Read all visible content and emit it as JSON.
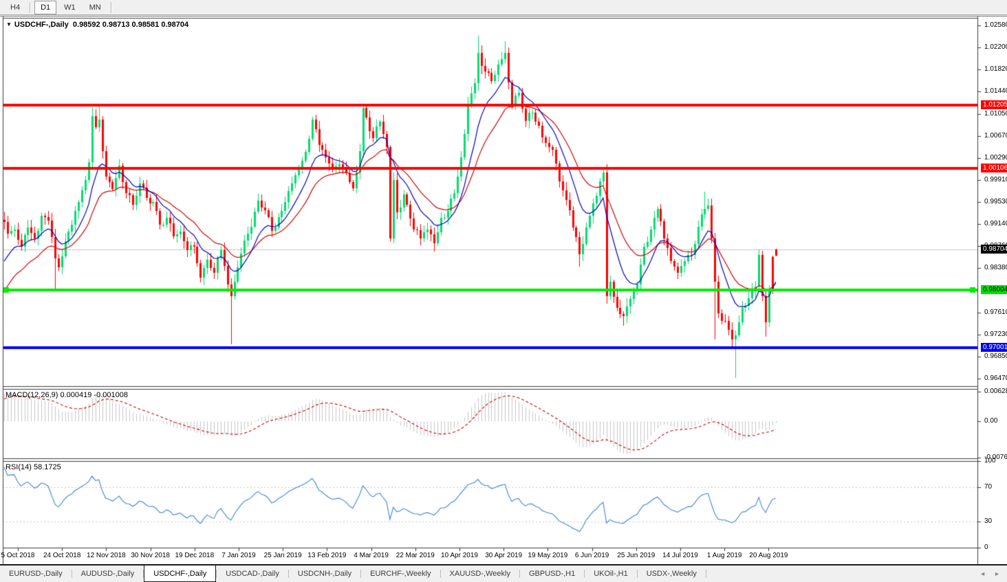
{
  "toolbar": {
    "buttons": [
      {
        "label": "H4",
        "active": false,
        "sep_after": true
      },
      {
        "label": "D1",
        "active": true,
        "sep_after": false
      },
      {
        "label": "W1",
        "active": false,
        "sep_after": false
      },
      {
        "label": "MN",
        "active": false,
        "sep_after": true
      }
    ]
  },
  "chart_data": {
    "type": "candlestick",
    "dropdown_glyph": "▼",
    "symbol_title": "USDCHF-,Daily",
    "ohlc_text": "0.98592 0.98713 0.98581 0.98704",
    "last_candle": {
      "o": 0.98592,
      "h": 0.98713,
      "l": 0.98581,
      "c": 0.98704
    },
    "first_open": 0.9922,
    "candles_n": 229,
    "colors": {
      "up": "#00DC6E",
      "down": "#FF0000",
      "ma_fast": "#0000C8",
      "ma_slow": "#D40000",
      "hist": "#C6C6C6",
      "signal": "#CC0000",
      "rsi": "#3C82DC",
      "grid_dash": "#C8C8C8",
      "current_line": "#C8C8C8"
    },
    "price_ticks": [
      {
        "v": 1.0258,
        "t": "1.02580"
      },
      {
        "v": 1.022,
        "t": "1.02200"
      },
      {
        "v": 1.0182,
        "t": "1.01820"
      },
      {
        "v": 1.0144,
        "t": "1.01440"
      },
      {
        "v": 1.0105,
        "t": "1.01050"
      },
      {
        "v": 1.0067,
        "t": "1.00670"
      },
      {
        "v": 1.0029,
        "t": "1.00290"
      },
      {
        "v": 0.9991,
        "t": "0.99910"
      },
      {
        "v": 0.9953,
        "t": "0.99530"
      },
      {
        "v": 0.9914,
        "t": "0.99140"
      },
      {
        "v": 0.9876,
        "t": "0.98760"
      },
      {
        "v": 0.9838,
        "t": "0.98380"
      },
      {
        "v": 0.9761,
        "t": "0.97610"
      },
      {
        "v": 0.9723,
        "t": "0.97230"
      },
      {
        "v": 0.9685,
        "t": "0.96850"
      },
      {
        "v": 0.9647,
        "t": "0.96470"
      }
    ],
    "levels": [
      {
        "value": 1.01205,
        "color": "#FF0000",
        "width": 4,
        "label": "1.01205",
        "label_bg": "#FF0000",
        "label_fg": "#FFFFFF",
        "markers": false
      },
      {
        "value": 1.00106,
        "color": "#FF0000",
        "width": 4,
        "label": "1.00106",
        "label_bg": "#FF0000",
        "label_fg": "#FFFFFF",
        "markers": false
      },
      {
        "value": 0.98004,
        "color": "#00EE00",
        "width": 4,
        "label": "0.98004",
        "label_bg": "#00E000",
        "label_fg": "#000000",
        "markers": true
      },
      {
        "value": 0.97001,
        "color": "#0000FF",
        "width": 4,
        "label": "0.97001",
        "label_bg": "#0000F0",
        "label_fg": "#FFFFFF",
        "markers": false
      }
    ],
    "current_price": {
      "value": 0.98704,
      "label": "0.98704",
      "label_bg": "#000000",
      "label_fg": "#FFFFFF"
    },
    "x_labels": [
      "5 Oct 2018",
      "24 Oct 2018",
      "12 Nov 2018",
      "30 Nov 2018",
      "19 Dec 2018",
      "7 Jan 2019",
      "25 Jan 2019",
      "13 Feb 2019",
      "4 Mar 2019",
      "22 Mar 2019",
      "10 Apr 2019",
      "30 Apr 2019",
      "19 May 2019",
      "6 Jun 2019",
      "25 Jun 2019",
      "14 Jul 2019",
      "1 Aug 2019",
      "20 Aug 2019"
    ],
    "warmup": [
      0.9635,
      0.9642,
      0.9655,
      0.9648,
      0.9668,
      0.9672,
      0.969,
      0.9685,
      0.9705,
      0.9718,
      0.9712,
      0.973,
      0.9745,
      0.9742,
      0.976,
      0.9775,
      0.977,
      0.979,
      0.9805,
      0.98,
      0.9822,
      0.9838,
      0.9845,
      0.9862,
      0.9878,
      0.9895
    ],
    "anchors": [
      [
        0,
        0.9918
      ],
      [
        1,
        0.9898
      ],
      [
        3,
        0.9905
      ],
      [
        5,
        0.9875
      ],
      [
        7,
        0.9908
      ],
      [
        9,
        0.989
      ],
      [
        11,
        0.9929
      ],
      [
        13,
        0.992
      ],
      [
        15,
        0.9855
      ],
      [
        16,
        0.984
      ],
      [
        18,
        0.9885
      ],
      [
        20,
        0.9913
      ],
      [
        22,
        0.9952
      ],
      [
        24,
        0.999
      ],
      [
        25,
        1.0022
      ],
      [
        26,
        1.0101
      ],
      [
        27,
        1.0082
      ],
      [
        28,
        1.0095
      ],
      [
        29,
        1.004
      ],
      [
        30,
        0.9996
      ],
      [
        32,
        0.9975
      ],
      [
        34,
        1.0016
      ],
      [
        36,
        0.9968
      ],
      [
        38,
        0.9948
      ],
      [
        40,
        0.9984
      ],
      [
        42,
        0.996
      ],
      [
        44,
        0.9952
      ],
      [
        46,
        0.9913
      ],
      [
        48,
        0.9925
      ],
      [
        50,
        0.9893
      ],
      [
        52,
        0.9901
      ],
      [
        54,
        0.9869
      ],
      [
        56,
        0.9875
      ],
      [
        58,
        0.9822
      ],
      [
        60,
        0.9853
      ],
      [
        62,
        0.983
      ],
      [
        64,
        0.9869
      ],
      [
        66,
        0.981
      ],
      [
        67,
        0.979
      ],
      [
        69,
        0.9839
      ],
      [
        71,
        0.9886
      ],
      [
        73,
        0.991
      ],
      [
        75,
        0.9955
      ],
      [
        77,
        0.9938
      ],
      [
        79,
        0.9902
      ],
      [
        81,
        0.9926
      ],
      [
        83,
        0.9952
      ],
      [
        85,
        0.9984
      ],
      [
        87,
        1.001
      ],
      [
        89,
        1.0039
      ],
      [
        91,
        1.0095
      ],
      [
        93,
        1.0051
      ],
      [
        95,
        1.003
      ],
      [
        97,
        1.0012
      ],
      [
        99,
        1.0018
      ],
      [
        101,
        1.0002
      ],
      [
        103,
        0.9976
      ],
      [
        105,
        1.004
      ],
      [
        106,
        1.0115
      ],
      [
        107,
        1.0099
      ],
      [
        109,
        1.0063
      ],
      [
        111,
        1.0091
      ],
      [
        113,
        1.0047
      ],
      [
        114,
        0.989
      ],
      [
        115,
        0.999
      ],
      [
        116,
        0.9935
      ],
      [
        118,
        0.9965
      ],
      [
        119,
        0.9948
      ],
      [
        121,
        0.9905
      ],
      [
        123,
        0.9889
      ],
      [
        125,
        0.9905
      ],
      [
        127,
        0.9881
      ],
      [
        129,
        0.9925
      ],
      [
        131,
        0.9937
      ],
      [
        133,
        0.9968
      ],
      [
        135,
        1.003
      ],
      [
        137,
        1.0123
      ],
      [
        139,
        1.0158
      ],
      [
        140,
        1.021
      ],
      [
        142,
        1.0178
      ],
      [
        144,
        1.0162
      ],
      [
        146,
        1.019
      ],
      [
        148,
        1.021
      ],
      [
        150,
        1.0119
      ],
      [
        152,
        1.0142
      ],
      [
        154,
        1.0093
      ],
      [
        156,
        1.0107
      ],
      [
        158,
        1.0085
      ],
      [
        160,
        1.0055
      ],
      [
        162,
        1.0043
      ],
      [
        164,
        0.9988
      ],
      [
        166,
        0.9956
      ],
      [
        168,
        0.9909
      ],
      [
        170,
        0.9862
      ],
      [
        172,
        0.9909
      ],
      [
        174,
        0.995
      ],
      [
        176,
        0.9988
      ],
      [
        177,
        1.0004
      ],
      [
        178,
        0.979
      ],
      [
        179,
        0.9815
      ],
      [
        181,
        0.977
      ],
      [
        183,
        0.9755
      ],
      [
        185,
        0.9785
      ],
      [
        187,
        0.981
      ],
      [
        189,
        0.9875
      ],
      [
        191,
        0.9905
      ],
      [
        193,
        0.9941
      ],
      [
        195,
        0.9889
      ],
      [
        197,
        0.985
      ],
      [
        199,
        0.983
      ],
      [
        201,
        0.985
      ],
      [
        203,
        0.9861
      ],
      [
        205,
        0.991
      ],
      [
        207,
        0.9941
      ],
      [
        208,
        0.9946
      ],
      [
        209,
        0.989
      ],
      [
        210,
        0.9814
      ],
      [
        211,
        0.976
      ],
      [
        213,
        0.9747
      ],
      [
        215,
        0.9715
      ],
      [
        216,
        0.9722
      ],
      [
        218,
        0.977
      ],
      [
        220,
        0.9786
      ],
      [
        222,
        0.9806
      ],
      [
        223,
        0.9861
      ],
      [
        224,
        0.979
      ],
      [
        225,
        0.9745
      ],
      [
        226,
        0.98
      ],
      [
        227,
        0.9857
      ],
      [
        228,
        0.98704
      ]
    ],
    "wick_overrides": {
      "15": {
        "l": 0.98
      },
      "26": {
        "h": 1.0117
      },
      "28": {
        "h": 1.012
      },
      "67": {
        "l": 0.9707
      },
      "91": {
        "h": 1.01
      },
      "106": {
        "h": 1.0122
      },
      "140": {
        "h": 1.024
      },
      "148": {
        "h": 1.0231
      },
      "170": {
        "l": 0.9841
      },
      "177": {
        "h": 1.0012
      },
      "183": {
        "l": 0.9738
      },
      "207": {
        "h": 0.997
      },
      "210": {
        "l": 0.9715
      },
      "216": {
        "l": 0.9648
      },
      "223": {
        "h": 0.9871
      },
      "225": {
        "l": 0.9719
      }
    },
    "color_overrides": {
      "227": "down",
      "228": "down"
    },
    "moving_averages": [
      {
        "period": 10,
        "color": "#0000C8"
      },
      {
        "period": 21,
        "color": "#D40000"
      }
    ],
    "indicators": [
      {
        "name": "MACD",
        "label": "MACD(12,26,9)",
        "values_text": "0.000419 -0.001008",
        "params": [
          12,
          26,
          9
        ],
        "axis": {
          "max": 0.0068,
          "min": -0.0078,
          "ticks": [
            {
              "v": 0.006286,
              "t": "0.006286"
            },
            {
              "v": 0,
              "t": "0.00"
            },
            {
              "v": -0.00762,
              "t": "-0.00762"
            }
          ]
        }
      },
      {
        "name": "RSI",
        "label": "RSI(14)",
        "values_text": "58.1725",
        "params": [
          14
        ],
        "levels": [
          70,
          30
        ],
        "axis": {
          "ticks": [
            {
              "v": 100,
              "t": "100"
            },
            {
              "v": 70,
              "t": "70"
            },
            {
              "v": 30,
              "t": "30"
            },
            {
              "v": 0,
              "t": "0"
            }
          ]
        }
      }
    ]
  },
  "tabbar": {
    "tabs": [
      {
        "label": "EURUSD-,Daily",
        "active": false
      },
      {
        "label": "AUDUSD-,Daily",
        "active": false
      },
      {
        "label": "USDCHF-,Daily",
        "active": true
      },
      {
        "label": "USDCAD-,Daily",
        "active": false
      },
      {
        "label": "USDCNH-,Daily",
        "active": false
      },
      {
        "label": "EURCHF-,Weekly",
        "active": false
      },
      {
        "label": "XAUUSD-,Weekly",
        "active": false
      },
      {
        "label": "GBPUSD-,H1",
        "active": false
      },
      {
        "label": "UKOil-,H1",
        "active": false
      },
      {
        "label": "USDX-,Weekly",
        "active": false
      }
    ],
    "left_arrow": "◄",
    "right_arrow": "►"
  }
}
